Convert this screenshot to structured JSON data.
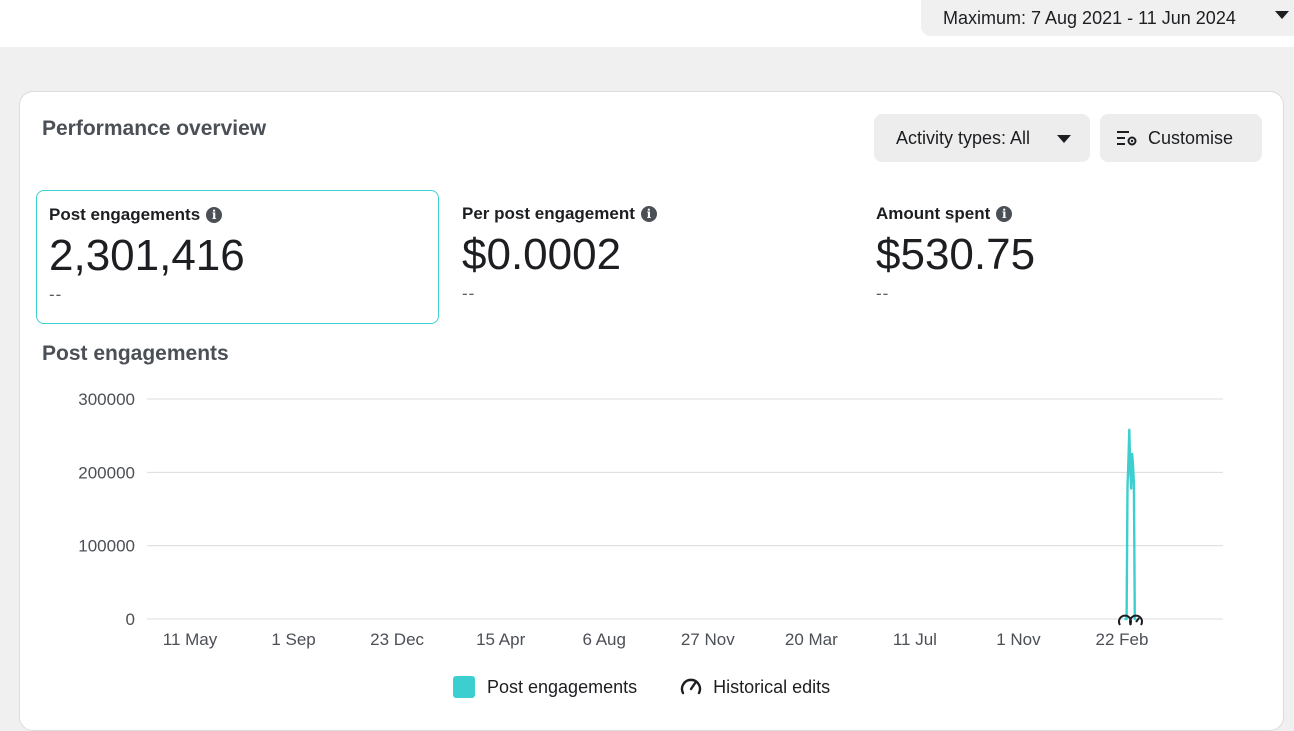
{
  "header": {
    "date_range_label": "Maximum: 7 Aug 2021 - 11 Jun 2024"
  },
  "overview": {
    "title": "Performance overview",
    "activity_button": "Activity types: All",
    "customise_button": "Customise"
  },
  "metrics": [
    {
      "label": "Post engagements",
      "value": "2,301,416",
      "comparison": "--",
      "selected": true
    },
    {
      "label": "Per post engagement",
      "value": "$0.0002",
      "comparison": "--",
      "selected": false
    },
    {
      "label": "Amount spent",
      "value": "$530.75",
      "comparison": "--",
      "selected": false
    }
  ],
  "chart_title": "Post engagements",
  "chart_data": {
    "type": "line",
    "title": "Post engagements",
    "xlabel": "",
    "ylabel": "",
    "ylim": [
      0,
      300000
    ],
    "yticks": [
      0,
      100000,
      200000,
      300000
    ],
    "xticks": [
      "11 May",
      "1 Sep",
      "23 Dec",
      "15 Apr",
      "6 Aug",
      "27 Nov",
      "20 Mar",
      "11 Jul",
      "1 Nov",
      "22 Feb"
    ],
    "grid": true,
    "series": [
      {
        "name": "Post engagements",
        "color": "#3dcfcf",
        "points": [
          [
            "2024-02-25",
            0
          ],
          [
            "2024-02-27",
            0
          ],
          [
            "2024-02-28",
            180000
          ],
          [
            "2024-02-29",
            215000
          ],
          [
            "2024-03-01",
            258000
          ],
          [
            "2024-03-02",
            205000
          ],
          [
            "2024-03-03",
            178000
          ],
          [
            "2024-03-04",
            225000
          ],
          [
            "2024-03-05",
            210000
          ],
          [
            "2024-03-06",
            185000
          ],
          [
            "2024-03-07",
            0
          ],
          [
            "2024-03-08",
            0
          ]
        ]
      }
    ],
    "legend": [
      "Post engagements",
      "Historical edits"
    ],
    "legend_position": "bottom",
    "historical_edit_icon": "gauge-icon"
  },
  "legend": {
    "series_label": "Post engagements",
    "edits_label": "Historical edits"
  }
}
